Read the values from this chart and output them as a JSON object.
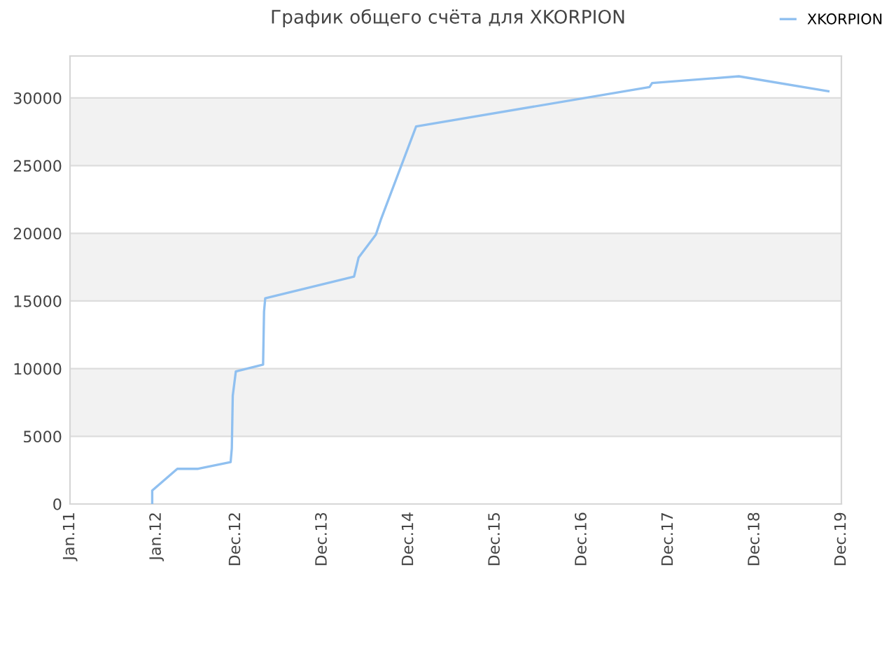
{
  "chart_data": {
    "type": "line",
    "title": "График общего счёта для XKORPION",
    "x": [
      "2011-12-14",
      "2011-12-14",
      "2012-03-29",
      "2012-06-25",
      "2012-11-09",
      "2012-11-14",
      "2012-11-18",
      "2012-12-01",
      "2013-03-26",
      "2013-03-30",
      "2013-04-04",
      "2014-04-14",
      "2014-05-03",
      "2014-07-15",
      "2014-08-05",
      "2015-01-01",
      "2017-09-12",
      "2017-09-23",
      "2018-09-24",
      "2019-10-07"
    ],
    "series": [
      {
        "name": "XKORPION",
        "color": "#90c0f0",
        "values": [
          0,
          1000,
          2600,
          2600,
          3100,
          4100,
          8000,
          9800,
          10300,
          14200,
          15200,
          16800,
          18200,
          19900,
          21000,
          27900,
          30800,
          31100,
          31600,
          30500
        ]
      }
    ],
    "xlim": [
      "2011-01-01",
      "2019-12-01"
    ],
    "xticks": [
      {
        "value": "2011-01-01",
        "label": "Jan.11"
      },
      {
        "value": "2012-01-01",
        "label": "Jan.12"
      },
      {
        "value": "2012-12-01",
        "label": "Dec.12"
      },
      {
        "value": "2013-12-01",
        "label": "Dec.13"
      },
      {
        "value": "2014-12-01",
        "label": "Dec.14"
      },
      {
        "value": "2015-12-01",
        "label": "Dec.15"
      },
      {
        "value": "2016-12-01",
        "label": "Dec.16"
      },
      {
        "value": "2017-12-01",
        "label": "Dec.17"
      },
      {
        "value": "2018-12-01",
        "label": "Dec.18"
      },
      {
        "value": "2019-12-01",
        "label": "Dec.19"
      }
    ],
    "ylim": [
      0,
      33100
    ],
    "yticks": [
      0,
      5000,
      10000,
      15000,
      20000,
      25000,
      30000
    ],
    "grid": "y",
    "legend": "top right",
    "marker": "none",
    "line_style": "solid"
  }
}
